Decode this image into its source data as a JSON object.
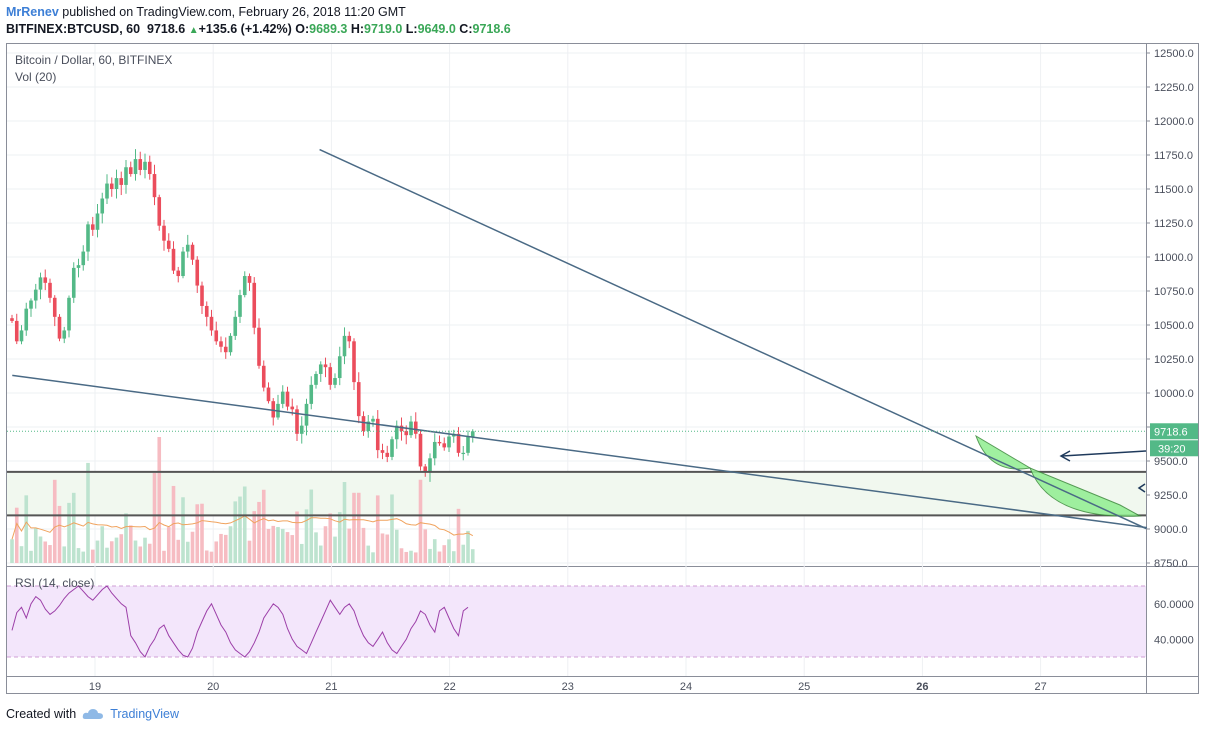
{
  "header": {
    "author": "MrRenev",
    "published": "published on TradingView.com, February 26, 2018 11:20 GMT",
    "symbol": "BITFINEX:BTCUSD, 60",
    "last": "9718.6",
    "change": "+135.6 (+1.42%)",
    "o_label": "O:",
    "o": "9689.3",
    "h_label": "H:",
    "h": "9719.0",
    "l_label": "L:",
    "l": "9649.0",
    "c_label": "C:",
    "c": "9718.6"
  },
  "legend": {
    "title": "Bitcoin / Dollar, 60, BITFINEX",
    "volume": "Vol (20)",
    "rsi": "RSI (14, close)"
  },
  "price_axis": {
    "ticks": [
      "12500.0",
      "12250.0",
      "12000.0",
      "11750.0",
      "11500.0",
      "11250.0",
      "11000.0",
      "10750.0",
      "10500.0",
      "10250.0",
      "10000.0",
      "9750.0",
      "9500.0",
      "9250.0",
      "9000.0",
      "8750.0"
    ],
    "last_label": "9718.6",
    "countdown": "39:20"
  },
  "rsi_axis": {
    "ticks": [
      "60.0000",
      "40.0000"
    ]
  },
  "time_axis": {
    "ticks": [
      "19",
      "20",
      "21",
      "22",
      "23",
      "24",
      "25",
      "26",
      "27"
    ]
  },
  "footer": {
    "created": "Created with",
    "brand": "TradingView"
  },
  "colors": {
    "up": "#53b987",
    "down": "#eb4d5c",
    "trend": "#4a6a85",
    "support": "#555555",
    "zone": "#f1f8ef",
    "rsi_line": "#9c3fa8",
    "rsi_band": "#f3e6fb",
    "last_price": "#53b987",
    "projection": "#90ee90"
  },
  "chart_data": {
    "type": "candlestick",
    "title": "Bitcoin / Dollar, 60, BITFINEX",
    "ylim": [
      8720,
      12560
    ],
    "x_days": [
      "19",
      "20",
      "21",
      "22",
      "23",
      "24",
      "25",
      "26",
      "27"
    ],
    "closes": [
      10530,
      10380,
      10460,
      10620,
      10680,
      10760,
      10850,
      10810,
      10700,
      10560,
      10400,
      10460,
      10700,
      10920,
      10940,
      11040,
      11240,
      11200,
      11320,
      11430,
      11540,
      11500,
      11580,
      11530,
      11660,
      11610,
      11720,
      11640,
      11700,
      11610,
      11440,
      11230,
      11120,
      11060,
      10900,
      10860,
      11040,
      11090,
      10980,
      10790,
      10640,
      10560,
      10460,
      10380,
      10340,
      10300,
      10420,
      10560,
      10720,
      10860,
      10810,
      10480,
      10200,
      10040,
      9940,
      9820,
      9920,
      10010,
      9900,
      9880,
      9700,
      9760,
      9920,
      10060,
      10140,
      10210,
      10190,
      10060,
      10110,
      10270,
      10420,
      10380,
      10080,
      9830,
      9720,
      9790,
      9810,
      9580,
      9560,
      9530,
      9660,
      9760,
      9720,
      9690,
      9790,
      9700,
      9460,
      9420,
      9520,
      9640,
      9630,
      9600,
      9680,
      9700,
      9560,
      9560,
      9680,
      9718.6
    ],
    "support_levels": [
      9420,
      9100
    ],
    "last_price": 9718.6,
    "trendlines": [
      {
        "name": "upper",
        "from": {
          "day": "20.9",
          "price": 11790
        },
        "to": {
          "day": "27.9",
          "price": 9000
        }
      },
      {
        "name": "lower",
        "from": {
          "day": "18.3",
          "price": 10130
        },
        "to": {
          "day": "27.9",
          "price": 9010
        }
      }
    ],
    "volume_ma": 20,
    "rsi": {
      "period": 14,
      "values": [
        45,
        55,
        58,
        52,
        60,
        64,
        62,
        57,
        54,
        56,
        59,
        63,
        66,
        68,
        70,
        67,
        64,
        62,
        65,
        68,
        70,
        66,
        63,
        60,
        58,
        42,
        38,
        33,
        30,
        36,
        40,
        46,
        48,
        42,
        38,
        34,
        31,
        30,
        35,
        44,
        50,
        56,
        60,
        54,
        48,
        44,
        38,
        34,
        32,
        30,
        33,
        38,
        44,
        52,
        56,
        60,
        58,
        54,
        46,
        40,
        36,
        34,
        32,
        38,
        44,
        50,
        56,
        62,
        58,
        54,
        58,
        60,
        56,
        48,
        42,
        38,
        36,
        40,
        44,
        38,
        34,
        32,
        36,
        40,
        46,
        50,
        56,
        54,
        48,
        44,
        56,
        58,
        52,
        46,
        42,
        56,
        58
      ]
    }
  }
}
